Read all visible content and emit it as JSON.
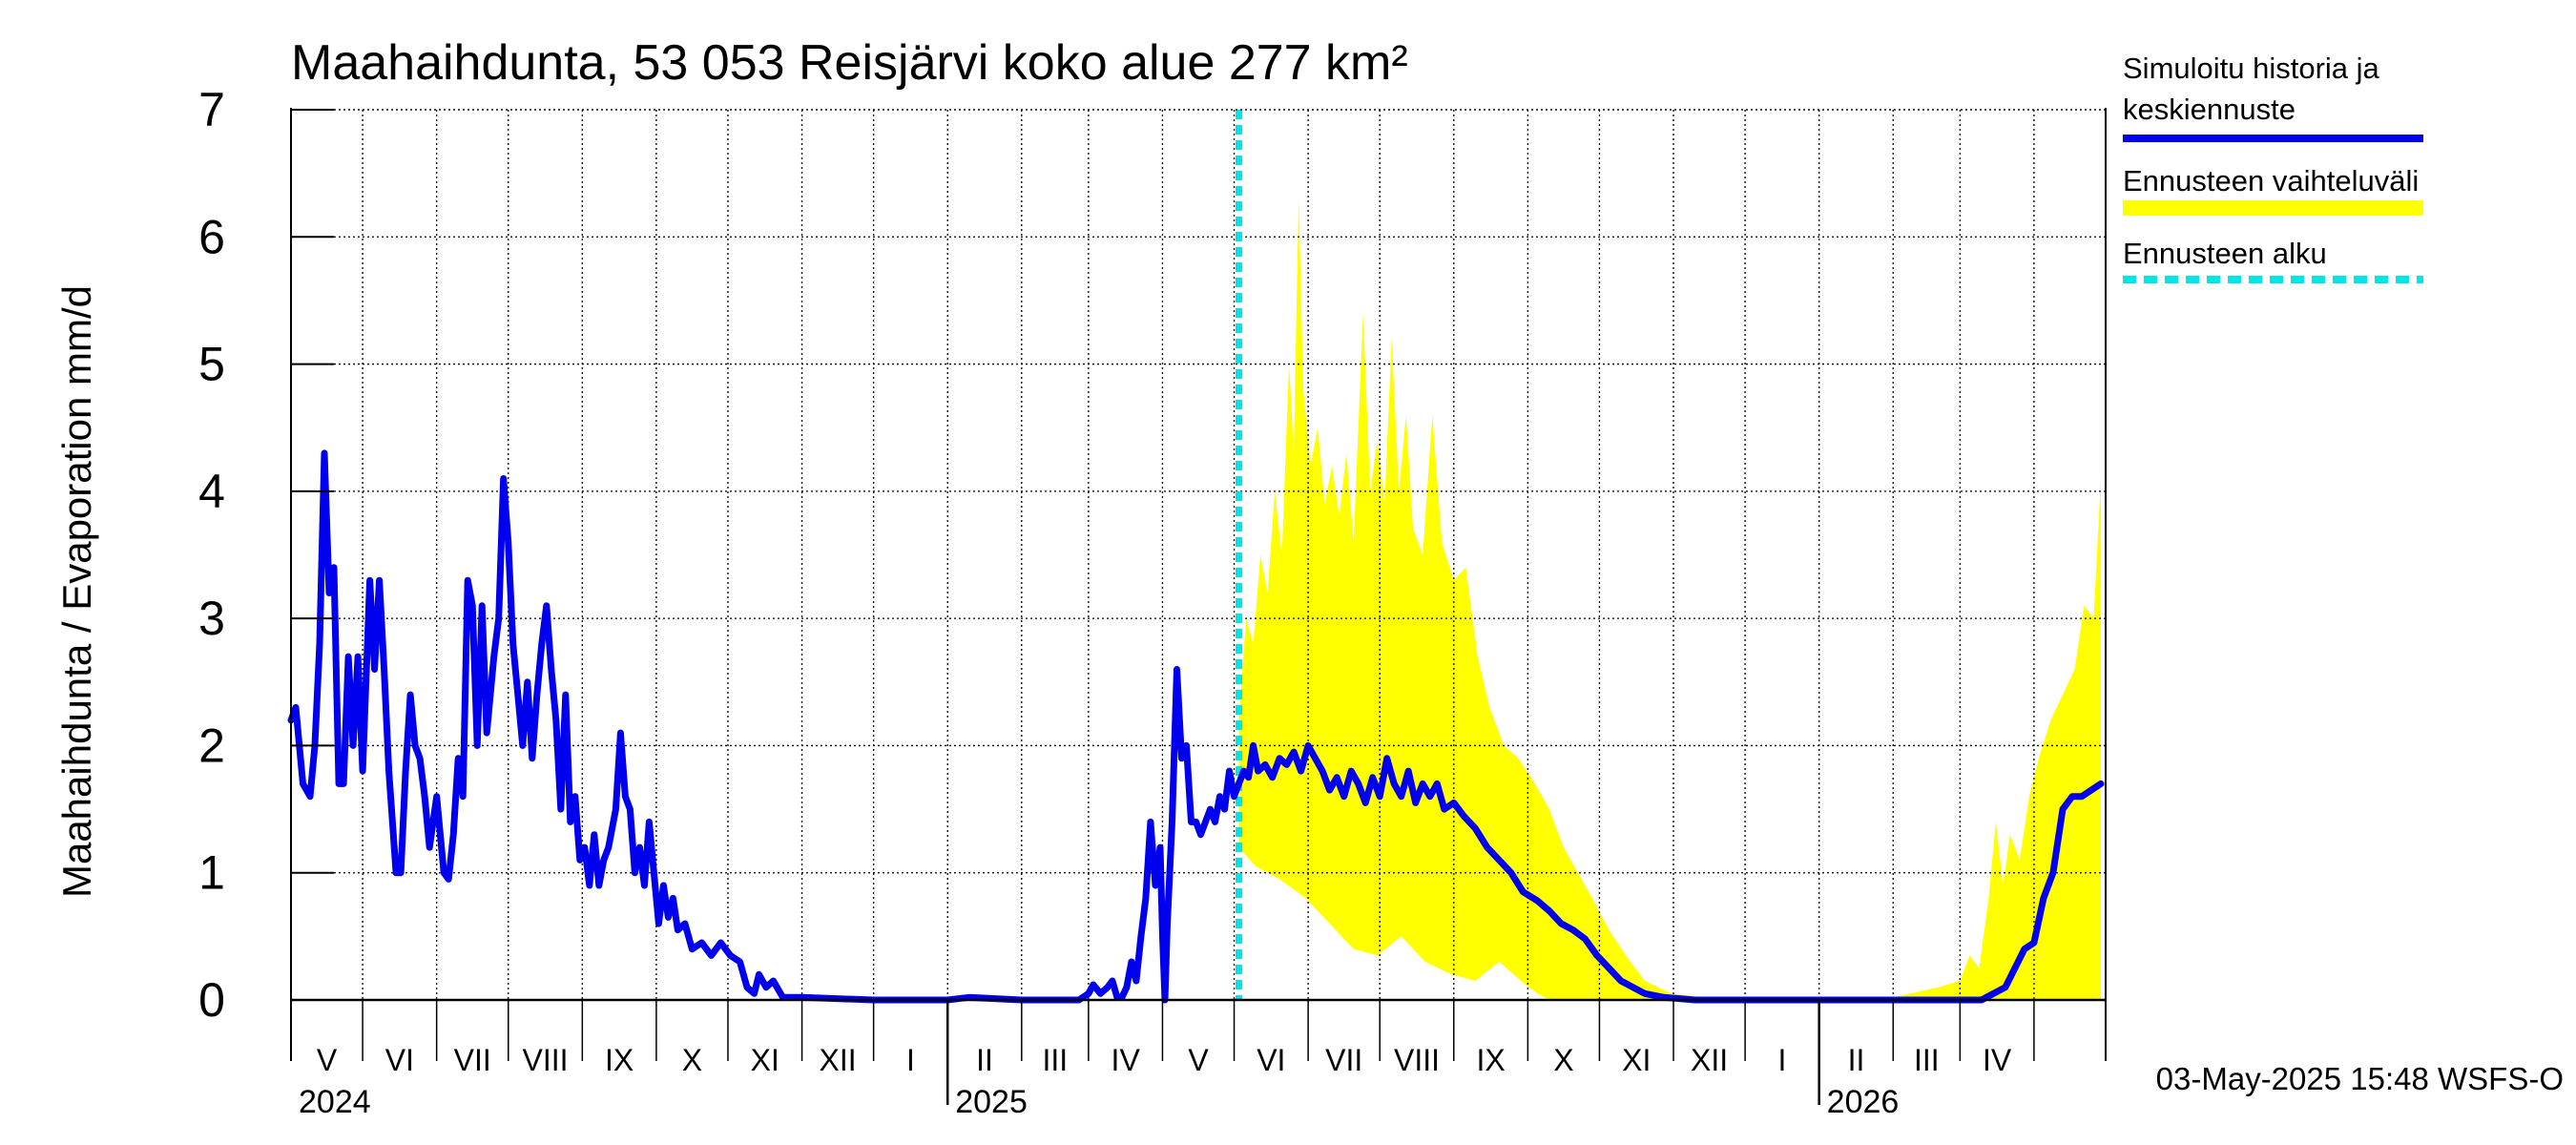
{
  "chart_data": {
    "type": "area",
    "title": "Maahaihdunta, 53 053 Reisjärvi koko alue 277 km²",
    "ylabel": "Maahaihdunta / Evaporation   mm/d",
    "ylim": [
      0,
      7
    ],
    "yticks": [
      0,
      1,
      2,
      3,
      4,
      5,
      6,
      7
    ],
    "x_range": [
      "2024-04-01",
      "2026-04-30"
    ],
    "month_labels": [
      "V",
      "VI",
      "VII",
      "VIII",
      "IX",
      "X",
      "XI",
      "XII",
      "I",
      "II",
      "III",
      "IV",
      "V",
      "VI",
      "VII",
      "VIII",
      "IX",
      "X",
      "XI",
      "XII",
      "I",
      "II",
      "III",
      "IV"
    ],
    "year_labels": [
      "2024",
      "2025",
      "2026"
    ],
    "forecast_start": "2025-05-03",
    "grid": true,
    "legend": [
      {
        "label_lines": [
          "Simuloitu historia ja",
          "keskiennuste"
        ],
        "color": "#0000ee",
        "style": "solid"
      },
      {
        "label_lines": [
          "Ennusteen vaihteluväli"
        ],
        "color": "#ffff00",
        "style": "solid"
      },
      {
        "label_lines": [
          "Ennusteen alku"
        ],
        "color": "#00e5e5",
        "style": "dashed"
      }
    ],
    "timestamp": "03-May-2025 15:48 WSFS-O",
    "series": [
      {
        "name": "Simuloitu historia ja keskiennuste",
        "color": "#0000ee",
        "points": [
          [
            "2024-04-01",
            2.2
          ],
          [
            "2024-04-03",
            2.3
          ],
          [
            "2024-04-06",
            1.7
          ],
          [
            "2024-04-09",
            1.6
          ],
          [
            "2024-04-11",
            2.0
          ],
          [
            "2024-04-13",
            2.8
          ],
          [
            "2024-04-15",
            4.3
          ],
          [
            "2024-04-17",
            3.2
          ],
          [
            "2024-04-19",
            3.4
          ],
          [
            "2024-04-21",
            1.7
          ],
          [
            "2024-04-23",
            1.7
          ],
          [
            "2024-04-25",
            2.7
          ],
          [
            "2024-04-27",
            2.0
          ],
          [
            "2024-04-29",
            2.7
          ],
          [
            "2024-05-01",
            1.8
          ],
          [
            "2024-05-04",
            3.3
          ],
          [
            "2024-05-06",
            2.6
          ],
          [
            "2024-05-08",
            3.3
          ],
          [
            "2024-05-10",
            2.6
          ],
          [
            "2024-05-12",
            1.8
          ],
          [
            "2024-05-15",
            1.0
          ],
          [
            "2024-05-17",
            1.0
          ],
          [
            "2024-05-19",
            1.8
          ],
          [
            "2024-05-21",
            2.4
          ],
          [
            "2024-05-23",
            2.0
          ],
          [
            "2024-05-25",
            1.9
          ],
          [
            "2024-05-27",
            1.6
          ],
          [
            "2024-05-29",
            1.2
          ],
          [
            "2024-06-01",
            1.6
          ],
          [
            "2024-06-04",
            1.0
          ],
          [
            "2024-06-06",
            0.95
          ],
          [
            "2024-06-08",
            1.3
          ],
          [
            "2024-06-10",
            1.9
          ],
          [
            "2024-06-12",
            1.6
          ],
          [
            "2024-06-14",
            3.3
          ],
          [
            "2024-06-16",
            3.1
          ],
          [
            "2024-06-18",
            2.0
          ],
          [
            "2024-06-20",
            3.1
          ],
          [
            "2024-06-22",
            2.1
          ],
          [
            "2024-06-25",
            2.7
          ],
          [
            "2024-06-27",
            3.0
          ],
          [
            "2024-06-29",
            4.1
          ],
          [
            "2024-07-01",
            3.6
          ],
          [
            "2024-07-03",
            2.8
          ],
          [
            "2024-07-05",
            2.4
          ],
          [
            "2024-07-07",
            2.0
          ],
          [
            "2024-07-09",
            2.5
          ],
          [
            "2024-07-11",
            1.9
          ],
          [
            "2024-07-13",
            2.4
          ],
          [
            "2024-07-15",
            2.8
          ],
          [
            "2024-07-17",
            3.1
          ],
          [
            "2024-07-19",
            2.6
          ],
          [
            "2024-07-21",
            2.2
          ],
          [
            "2024-07-23",
            1.5
          ],
          [
            "2024-07-25",
            2.4
          ],
          [
            "2024-07-27",
            1.4
          ],
          [
            "2024-07-29",
            1.6
          ],
          [
            "2024-07-31",
            1.1
          ],
          [
            "2024-08-02",
            1.2
          ],
          [
            "2024-08-04",
            0.9
          ],
          [
            "2024-08-06",
            1.3
          ],
          [
            "2024-08-08",
            0.9
          ],
          [
            "2024-08-10",
            1.1
          ],
          [
            "2024-08-12",
            1.2
          ],
          [
            "2024-08-15",
            1.5
          ],
          [
            "2024-08-17",
            2.1
          ],
          [
            "2024-08-19",
            1.6
          ],
          [
            "2024-08-21",
            1.5
          ],
          [
            "2024-08-23",
            1.0
          ],
          [
            "2024-08-25",
            1.2
          ],
          [
            "2024-08-27",
            0.9
          ],
          [
            "2024-08-29",
            1.4
          ],
          [
            "2024-08-31",
            1.0
          ],
          [
            "2024-09-02",
            0.6
          ],
          [
            "2024-09-04",
            0.9
          ],
          [
            "2024-09-06",
            0.65
          ],
          [
            "2024-09-08",
            0.8
          ],
          [
            "2024-09-10",
            0.55
          ],
          [
            "2024-09-13",
            0.6
          ],
          [
            "2024-09-16",
            0.4
          ],
          [
            "2024-09-20",
            0.45
          ],
          [
            "2024-09-24",
            0.35
          ],
          [
            "2024-09-28",
            0.45
          ],
          [
            "2024-10-02",
            0.35
          ],
          [
            "2024-10-06",
            0.3
          ],
          [
            "2024-10-09",
            0.1
          ],
          [
            "2024-10-12",
            0.05
          ],
          [
            "2024-10-14",
            0.2
          ],
          [
            "2024-10-17",
            0.1
          ],
          [
            "2024-10-20",
            0.15
          ],
          [
            "2024-10-24",
            0.02
          ],
          [
            "2024-11-01",
            0.02
          ],
          [
            "2024-12-01",
            0.0
          ],
          [
            "2025-01-01",
            0.0
          ],
          [
            "2025-01-10",
            0.02
          ],
          [
            "2025-02-01",
            0.0
          ],
          [
            "2025-02-25",
            0.0
          ],
          [
            "2025-03-01",
            0.05
          ],
          [
            "2025-03-03",
            0.12
          ],
          [
            "2025-03-06",
            0.05
          ],
          [
            "2025-03-09",
            0.1
          ],
          [
            "2025-03-11",
            0.15
          ],
          [
            "2025-03-13",
            0.02
          ],
          [
            "2025-03-15",
            0.02
          ],
          [
            "2025-03-17",
            0.1
          ],
          [
            "2025-03-19",
            0.3
          ],
          [
            "2025-03-21",
            0.15
          ],
          [
            "2025-03-23",
            0.5
          ],
          [
            "2025-03-25",
            0.8
          ],
          [
            "2025-03-27",
            1.4
          ],
          [
            "2025-03-29",
            0.9
          ],
          [
            "2025-03-31",
            1.2
          ],
          [
            "2025-04-01",
            0.5
          ],
          [
            "2025-04-02",
            0.0
          ],
          [
            "2025-04-03",
            0.6
          ],
          [
            "2025-04-05",
            1.4
          ],
          [
            "2025-04-07",
            2.6
          ],
          [
            "2025-04-09",
            1.9
          ],
          [
            "2025-04-11",
            2.0
          ],
          [
            "2025-04-13",
            1.4
          ],
          [
            "2025-04-15",
            1.4
          ],
          [
            "2025-04-17",
            1.3
          ],
          [
            "2025-04-19",
            1.4
          ],
          [
            "2025-04-21",
            1.5
          ],
          [
            "2025-04-23",
            1.4
          ],
          [
            "2025-04-25",
            1.6
          ],
          [
            "2025-04-27",
            1.5
          ],
          [
            "2025-04-29",
            1.8
          ],
          [
            "2025-05-01",
            1.6
          ],
          [
            "2025-05-03",
            1.7
          ],
          [
            "2025-05-05",
            1.8
          ],
          [
            "2025-05-07",
            1.75
          ],
          [
            "2025-05-09",
            2.0
          ],
          [
            "2025-05-11",
            1.8
          ],
          [
            "2025-05-14",
            1.85
          ],
          [
            "2025-05-17",
            1.75
          ],
          [
            "2025-05-20",
            1.9
          ],
          [
            "2025-05-23",
            1.85
          ],
          [
            "2025-05-26",
            1.95
          ],
          [
            "2025-05-29",
            1.8
          ],
          [
            "2025-06-01",
            2.0
          ],
          [
            "2025-06-04",
            1.9
          ],
          [
            "2025-06-07",
            1.8
          ],
          [
            "2025-06-10",
            1.65
          ],
          [
            "2025-06-13",
            1.75
          ],
          [
            "2025-06-16",
            1.6
          ],
          [
            "2025-06-19",
            1.8
          ],
          [
            "2025-06-22",
            1.7
          ],
          [
            "2025-06-25",
            1.55
          ],
          [
            "2025-06-28",
            1.75
          ],
          [
            "2025-07-01",
            1.6
          ],
          [
            "2025-07-04",
            1.9
          ],
          [
            "2025-07-07",
            1.7
          ],
          [
            "2025-07-10",
            1.6
          ],
          [
            "2025-07-13",
            1.8
          ],
          [
            "2025-07-16",
            1.55
          ],
          [
            "2025-07-19",
            1.7
          ],
          [
            "2025-07-22",
            1.6
          ],
          [
            "2025-07-25",
            1.7
          ],
          [
            "2025-07-28",
            1.5
          ],
          [
            "2025-08-01",
            1.55
          ],
          [
            "2025-08-05",
            1.45
          ],
          [
            "2025-08-10",
            1.35
          ],
          [
            "2025-08-15",
            1.2
          ],
          [
            "2025-08-20",
            1.1
          ],
          [
            "2025-08-25",
            1.0
          ],
          [
            "2025-08-30",
            0.85
          ],
          [
            "2025-09-05",
            0.78
          ],
          [
            "2025-09-10",
            0.7
          ],
          [
            "2025-09-15",
            0.6
          ],
          [
            "2025-09-20",
            0.55
          ],
          [
            "2025-09-25",
            0.48
          ],
          [
            "2025-09-30",
            0.35
          ],
          [
            "2025-10-05",
            0.25
          ],
          [
            "2025-10-10",
            0.15
          ],
          [
            "2025-10-15",
            0.1
          ],
          [
            "2025-10-20",
            0.05
          ],
          [
            "2025-10-28",
            0.02
          ],
          [
            "2025-11-10",
            0.0
          ],
          [
            "2026-03-10",
            0.0
          ],
          [
            "2026-03-15",
            0.05
          ],
          [
            "2026-03-20",
            0.1
          ],
          [
            "2026-03-24",
            0.25
          ],
          [
            "2026-03-28",
            0.4
          ],
          [
            "2026-04-01",
            0.45
          ],
          [
            "2026-04-05",
            0.8
          ],
          [
            "2026-04-09",
            1.0
          ],
          [
            "2026-04-13",
            1.5
          ],
          [
            "2026-04-17",
            1.6
          ],
          [
            "2026-04-21",
            1.6
          ],
          [
            "2026-04-25",
            1.65
          ],
          [
            "2026-04-29",
            1.7
          ]
        ]
      },
      {
        "name": "Ennusteen vaihteluväli",
        "color": "#ffff00",
        "upper": [
          [
            "2025-05-03",
            2.2
          ],
          [
            "2025-05-06",
            3.0
          ],
          [
            "2025-05-09",
            2.8
          ],
          [
            "2025-05-12",
            3.5
          ],
          [
            "2025-05-15",
            3.2
          ],
          [
            "2025-05-18",
            4.0
          ],
          [
            "2025-05-21",
            3.5
          ],
          [
            "2025-05-24",
            5.0
          ],
          [
            "2025-05-26",
            4.3
          ],
          [
            "2025-05-28",
            6.3
          ],
          [
            "2025-05-30",
            4.8
          ],
          [
            "2025-06-02",
            4.2
          ],
          [
            "2025-06-05",
            4.5
          ],
          [
            "2025-06-08",
            3.9
          ],
          [
            "2025-06-11",
            4.2
          ],
          [
            "2025-06-14",
            3.8
          ],
          [
            "2025-06-17",
            4.3
          ],
          [
            "2025-06-20",
            3.6
          ],
          [
            "2025-06-24",
            5.4
          ],
          [
            "2025-06-27",
            4.0
          ],
          [
            "2025-06-30",
            4.4
          ],
          [
            "2025-07-03",
            3.9
          ],
          [
            "2025-07-06",
            5.2
          ],
          [
            "2025-07-09",
            4.0
          ],
          [
            "2025-07-12",
            4.6
          ],
          [
            "2025-07-15",
            3.7
          ],
          [
            "2025-07-19",
            3.5
          ],
          [
            "2025-07-23",
            4.6
          ],
          [
            "2025-07-27",
            3.6
          ],
          [
            "2025-08-01",
            3.3
          ],
          [
            "2025-08-06",
            3.4
          ],
          [
            "2025-08-11",
            2.7
          ],
          [
            "2025-08-16",
            2.3
          ],
          [
            "2025-08-22",
            2.0
          ],
          [
            "2025-08-28",
            1.9
          ],
          [
            "2025-09-04",
            1.7
          ],
          [
            "2025-09-10",
            1.5
          ],
          [
            "2025-09-16",
            1.2
          ],
          [
            "2025-09-22",
            1.0
          ],
          [
            "2025-09-28",
            0.8
          ],
          [
            "2025-10-05",
            0.55
          ],
          [
            "2025-10-12",
            0.35
          ],
          [
            "2025-10-20",
            0.15
          ],
          [
            "2025-10-31",
            0.05
          ],
          [
            "2025-11-15",
            0.02
          ],
          [
            "2026-02-01",
            0.02
          ],
          [
            "2026-02-20",
            0.1
          ],
          [
            "2026-03-01",
            0.15
          ],
          [
            "2026-03-05",
            0.35
          ],
          [
            "2026-03-09",
            0.25
          ],
          [
            "2026-03-13",
            0.8
          ],
          [
            "2026-03-16",
            1.4
          ],
          [
            "2026-03-19",
            0.9
          ],
          [
            "2026-03-22",
            1.3
          ],
          [
            "2026-03-26",
            1.1
          ],
          [
            "2026-03-30",
            1.6
          ],
          [
            "2026-04-03",
            1.9
          ],
          [
            "2026-04-08",
            2.2
          ],
          [
            "2026-04-13",
            2.4
          ],
          [
            "2026-04-18",
            2.6
          ],
          [
            "2026-04-22",
            3.1
          ],
          [
            "2026-04-26",
            3.0
          ],
          [
            "2026-04-29",
            4.1
          ]
        ],
        "lower": [
          [
            "2025-05-03",
            1.2
          ],
          [
            "2025-05-10",
            1.05
          ],
          [
            "2025-05-20",
            0.95
          ],
          [
            "2025-05-31",
            0.8
          ],
          [
            "2025-06-10",
            0.6
          ],
          [
            "2025-06-20",
            0.4
          ],
          [
            "2025-06-30",
            0.35
          ],
          [
            "2025-07-10",
            0.5
          ],
          [
            "2025-07-20",
            0.3
          ],
          [
            "2025-07-31",
            0.2
          ],
          [
            "2025-08-10",
            0.15
          ],
          [
            "2025-08-20",
            0.3
          ],
          [
            "2025-08-31",
            0.12
          ],
          [
            "2025-09-05",
            0.05
          ],
          [
            "2025-09-10",
            0.0
          ],
          [
            "2026-04-29",
            0.0
          ]
        ]
      }
    ]
  }
}
